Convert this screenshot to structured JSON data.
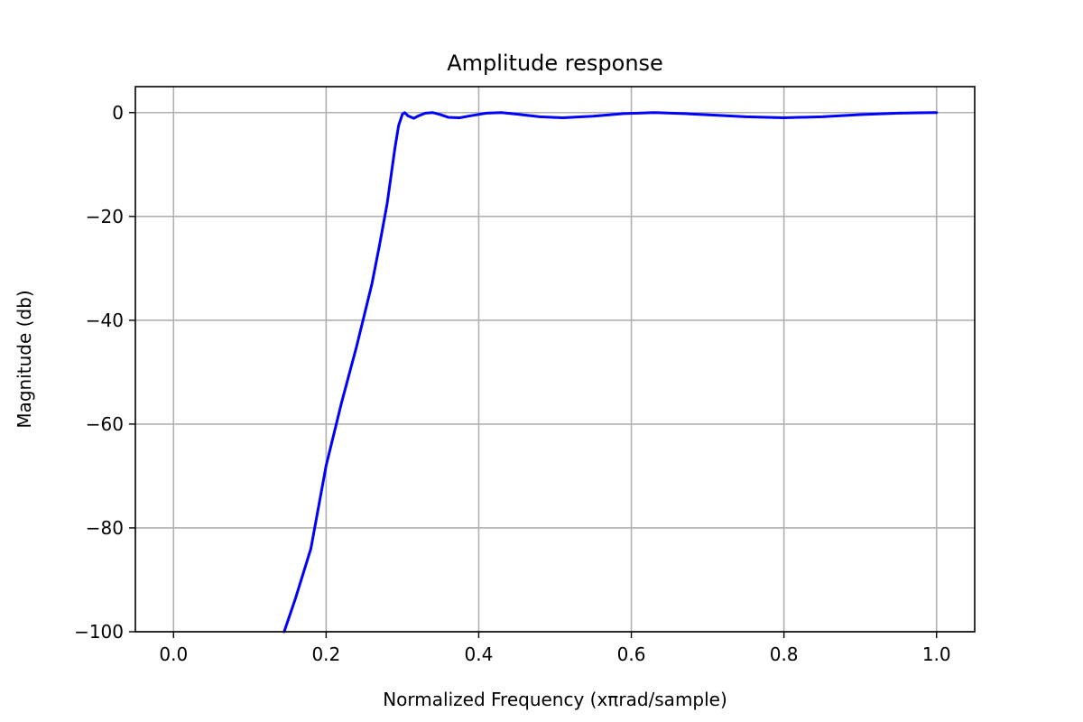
{
  "chart_data": {
    "type": "line",
    "title": "Amplitude response",
    "xlabel": "Normalized Frequency (xπrad/sample)",
    "ylabel": "Magnitude (db)",
    "xlim": [
      -0.05,
      1.05
    ],
    "ylim": [
      -100,
      5
    ],
    "xticks": [
      0.0,
      0.2,
      0.4,
      0.6,
      0.8,
      1.0
    ],
    "xtick_labels": [
      "0.0",
      "0.2",
      "0.4",
      "0.6",
      "0.8",
      "1.0"
    ],
    "yticks": [
      0,
      -20,
      -40,
      -60,
      -80,
      -100
    ],
    "ytick_labels": [
      "0",
      "−20",
      "−40",
      "−60",
      "−80",
      "−100"
    ],
    "grid": true,
    "line_color": "#0000ff",
    "series": [
      {
        "x": [
          0.145,
          0.16,
          0.18,
          0.2,
          0.22,
          0.24,
          0.25,
          0.26,
          0.27,
          0.28,
          0.29,
          0.295,
          0.3,
          0.303,
          0.307,
          0.315,
          0.32,
          0.33,
          0.34,
          0.35,
          0.36,
          0.375,
          0.39,
          0.41,
          0.43,
          0.45,
          0.48,
          0.51,
          0.55,
          0.59,
          0.63,
          0.67,
          0.71,
          0.75,
          0.8,
          0.85,
          0.9,
          0.95,
          1.0
        ],
        "y": [
          -100.0,
          -93.5,
          -84.0,
          -68.0,
          -56.0,
          -45.0,
          -39.0,
          -33.0,
          -25.5,
          -17.5,
          -7.0,
          -2.5,
          -0.3,
          0.0,
          -0.6,
          -1.1,
          -0.7,
          -0.1,
          0.0,
          -0.4,
          -0.9,
          -1.0,
          -0.6,
          -0.1,
          0.0,
          -0.3,
          -0.8,
          -1.0,
          -0.7,
          -0.2,
          0.0,
          -0.2,
          -0.5,
          -0.8,
          -1.0,
          -0.8,
          -0.4,
          -0.1,
          0.0
        ]
      }
    ]
  }
}
